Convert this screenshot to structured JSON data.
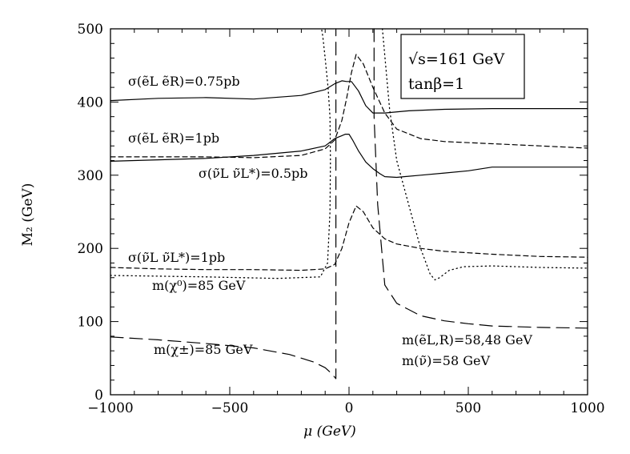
{
  "chart_data": {
    "type": "line",
    "title": "",
    "xlabel": "μ (GeV)",
    "ylabel": "M₂ (GeV)",
    "xlim": [
      -1000,
      1000
    ],
    "ylim": [
      0,
      500
    ],
    "xticks": [
      -1000,
      -500,
      0,
      500,
      1000
    ],
    "yticks": [
      0,
      100,
      200,
      300,
      400,
      500
    ],
    "xtick_labels": [
      "−1000",
      "−500",
      "0",
      "500",
      "1000"
    ],
    "ytick_labels": [
      "0",
      "100",
      "200",
      "300",
      "400",
      "500"
    ],
    "grid": false,
    "info_box": [
      "√s=161 GeV",
      "tanβ=1"
    ],
    "series": [
      {
        "name": "σ(ẽL ẽR)=0.75pb",
        "style": "solid",
        "x": [
          -1000,
          -800,
          -600,
          -400,
          -200,
          -100,
          -60,
          -30,
          -10,
          10,
          40,
          70,
          100,
          150,
          250,
          400,
          600,
          800,
          1000
        ],
        "y": [
          402,
          405,
          406,
          404,
          409,
          417,
          425,
          429,
          428,
          428,
          415,
          395,
          385,
          385,
          388,
          390,
          391,
          391,
          391
        ]
      },
      {
        "name": "σ(ẽL ẽR)=1pb",
        "style": "solid",
        "x": [
          -1000,
          -800,
          -600,
          -400,
          -200,
          -100,
          -60,
          -30,
          -15,
          0,
          15,
          40,
          70,
          100,
          130,
          150,
          200,
          300,
          400,
          500,
          600,
          800,
          1000
        ],
        "y": [
          319,
          321,
          323,
          327,
          333,
          340,
          350,
          354,
          356,
          356,
          348,
          333,
          318,
          309,
          302,
          298,
          297,
          300,
          303,
          306,
          311,
          311,
          311
        ]
      },
      {
        "name": "σ(ν̃L ν̃L*)=0.5pb",
        "style": "dashed",
        "x": [
          -1000,
          -800,
          -600,
          -400,
          -200,
          -100,
          -60,
          -30,
          -10,
          10,
          30,
          60,
          100,
          150,
          200,
          300,
          400,
          600,
          800,
          1000
        ],
        "y": [
          325,
          325,
          325,
          324,
          327,
          336,
          348,
          375,
          405,
          440,
          465,
          452,
          420,
          385,
          363,
          350,
          346,
          343,
          340,
          337
        ]
      },
      {
        "name": "σ(ν̃L ν̃L*)=1pb",
        "style": "dashed",
        "x": [
          -1000,
          -800,
          -600,
          -400,
          -200,
          -100,
          -60,
          -30,
          0,
          30,
          60,
          100,
          150,
          200,
          300,
          400,
          500,
          600,
          800,
          1000
        ],
        "y": [
          174,
          172,
          171,
          171,
          170,
          172,
          178,
          200,
          235,
          258,
          250,
          228,
          213,
          206,
          200,
          196,
          194,
          192,
          189,
          188
        ]
      },
      {
        "name": "m(χ⁰)=85 GeV",
        "style": "dotted",
        "x": [
          -1000,
          -600,
          -300,
          -120,
          -90,
          -80,
          -78,
          -80,
          -88,
          -100,
          -110,
          -115
        ],
        "y": [
          163,
          161,
          159,
          161,
          180,
          250,
          320,
          380,
          420,
          460,
          490,
          500
        ]
      },
      {
        "name": "m(χ⁰)=85 GeV (right)",
        "style": "dotted",
        "x": [
          140,
          170,
          200,
          250,
          300,
          340,
          360,
          380,
          420,
          480,
          600,
          800,
          1000
        ],
        "y": [
          500,
          390,
          320,
          260,
          200,
          165,
          157,
          160,
          170,
          175,
          176,
          174,
          173
        ]
      },
      {
        "name": "m(χ±)=85 GeV",
        "style": "longdash",
        "x": [
          -1000,
          -800,
          -600,
          -400,
          -250,
          -150,
          -100,
          -70,
          -55,
          -55,
          -55
        ],
        "y": [
          79,
          75,
          70,
          64,
          55,
          45,
          37,
          28,
          22,
          250,
          500
        ]
      },
      {
        "name": "m(χ±)=85 GeV (right)",
        "style": "longdash",
        "x": [
          105,
          105,
          120,
          150,
          200,
          300,
          400,
          500,
          600,
          800,
          1000
        ],
        "y": [
          500,
          380,
          260,
          150,
          125,
          108,
          101,
          97,
          94,
          92,
          91
        ]
      }
    ],
    "annotations": [
      "σ(ẽL ẽR)=0.75pb",
      "σ(ẽL ẽR)=1pb",
      "σ(ν̃L ν̃L*)=0.5pb",
      "σ(ν̃L ν̃L*)=1pb",
      "m(χ⁰)=85 GeV",
      "m(χ±)=85 GeV",
      "m(ẽL,R)=58,48 GeV",
      "m(ν̃)=58 GeV"
    ]
  }
}
